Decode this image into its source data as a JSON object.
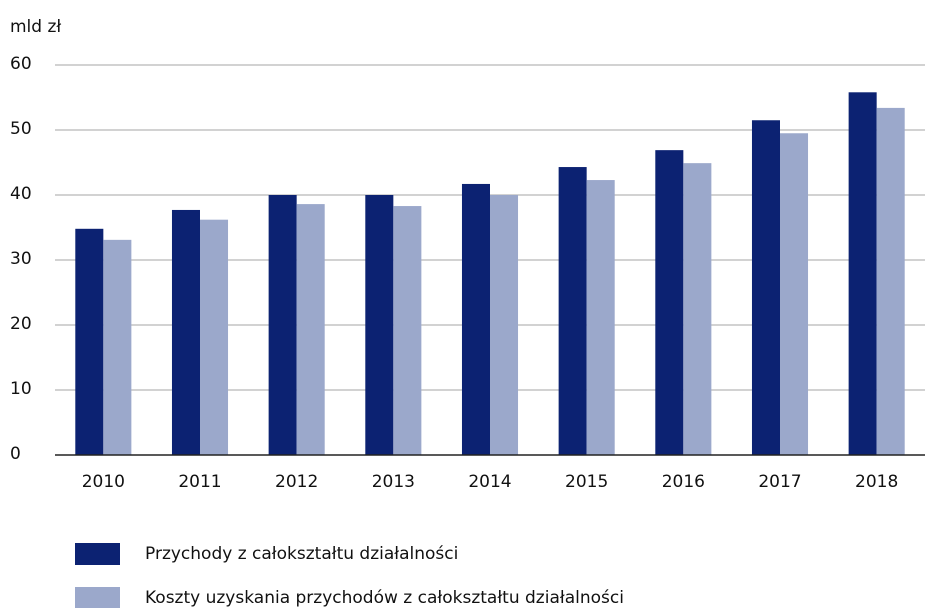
{
  "chart_data": {
    "type": "bar",
    "ylabel": "mld zł",
    "categories": [
      "2010",
      "2011",
      "2012",
      "2013",
      "2014",
      "2015",
      "2016",
      "2017",
      "2018"
    ],
    "series": [
      {
        "name": "Przychody z całokształtu działalności",
        "color": "#0c2272",
        "values": [
          34.8,
          37.7,
          40.0,
          40.0,
          41.7,
          44.3,
          46.9,
          51.5,
          55.8
        ]
      },
      {
        "name": "Koszty uzyskania przychodów z całokształtu działalności",
        "color": "#9ba8cb",
        "values": [
          33.1,
          36.2,
          38.6,
          38.3,
          40.0,
          42.3,
          44.9,
          49.5,
          53.4
        ]
      }
    ],
    "ylim": [
      0,
      60
    ],
    "yticks": [
      0,
      10,
      20,
      30,
      40,
      50,
      60
    ],
    "grid": true
  }
}
